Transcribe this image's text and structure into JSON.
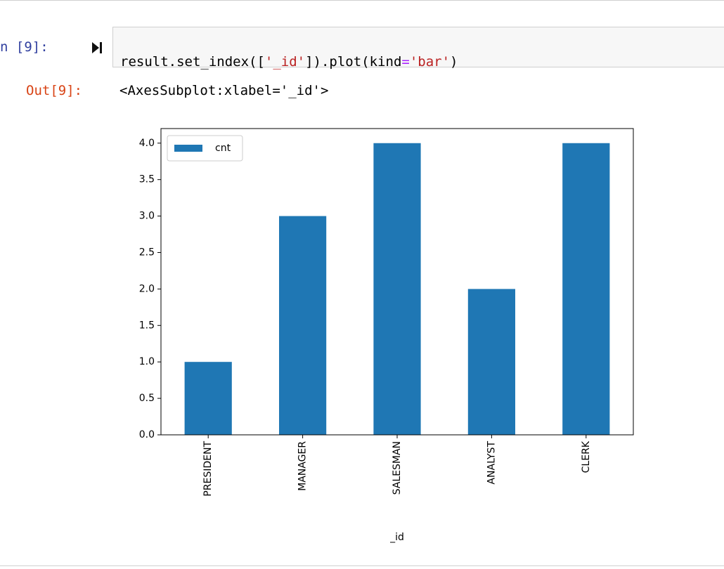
{
  "input": {
    "prompt": "n [9]:",
    "code_tokens": [
      "result.set_index([",
      "'_id'",
      "]).plot(kind",
      "=",
      "'bar'",
      ")"
    ]
  },
  "output": {
    "prompt": "Out[9]:",
    "text": "<AxesSubplot:xlabel='_id'>"
  },
  "chart_data": {
    "type": "bar",
    "xlabel": "_id",
    "categories": [
      "PRESIDENT",
      "MANAGER",
      "SALESMAN",
      "ANALYST",
      "CLERK"
    ],
    "series": [
      {
        "name": "cnt",
        "color": "#1f77b4",
        "values": [
          1,
          3,
          4,
          2,
          4
        ]
      }
    ],
    "ylim": [
      0,
      4.2
    ],
    "yticks": [
      {
        "value": 0,
        "label": "0.0"
      },
      0.5,
      {
        "value": 1,
        "label": "1.0"
      },
      1.5,
      {
        "value": 2,
        "label": "2.0"
      },
      2.5,
      {
        "value": 3,
        "label": "3.0"
      },
      3.5,
      {
        "value": 4,
        "label": "4.0"
      }
    ],
    "legend": "upper left",
    "grid": false
  }
}
